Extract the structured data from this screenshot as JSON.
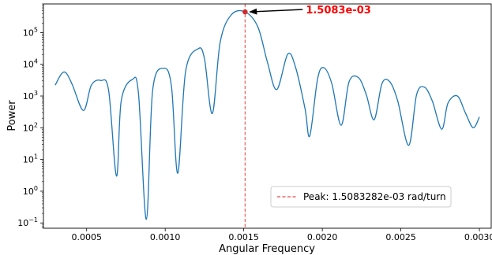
{
  "chart_data": {
    "type": "line",
    "title": "",
    "xlabel": "Angular Frequency",
    "ylabel": "Power",
    "yscale": "log",
    "xlim": [
      0.000225,
      0.003075
    ],
    "ylim": [
      0.068,
      800000
    ],
    "grid": false,
    "legend_position": "lower-right",
    "x_ticks": [
      {
        "value": 0.0005,
        "label": "0.0005"
      },
      {
        "value": 0.001,
        "label": "0.0010"
      },
      {
        "value": 0.0015,
        "label": "0.0015"
      },
      {
        "value": 0.002,
        "label": "0.0020"
      },
      {
        "value": 0.0025,
        "label": "0.0025"
      },
      {
        "value": 0.003,
        "label": "0.0030"
      }
    ],
    "y_ticks": [
      {
        "value": 0.1,
        "base": "10",
        "exp": "−1"
      },
      {
        "value": 1,
        "base": "10",
        "exp": "0"
      },
      {
        "value": 10,
        "base": "10",
        "exp": "1"
      },
      {
        "value": 100,
        "base": "10",
        "exp": "2"
      },
      {
        "value": 1000,
        "base": "10",
        "exp": "3"
      },
      {
        "value": 10000,
        "base": "10",
        "exp": "4"
      },
      {
        "value": 100000,
        "base": "10",
        "exp": "5"
      }
    ],
    "series": [
      {
        "color": "#1f77b4",
        "x": [
          0.0003,
          0.00034,
          0.00037,
          0.00041,
          0.00048,
          0.00053,
          0.00059,
          0.00064,
          0.00069,
          0.00072,
          0.00079,
          0.00083,
          0.00088,
          0.00092,
          0.00099,
          0.00104,
          0.00108,
          0.00113,
          0.00121,
          0.00125,
          0.0013,
          0.00135,
          0.00142,
          0.001508,
          0.00159,
          0.00165,
          0.00171,
          0.00178,
          0.00183,
          0.00189,
          0.00192,
          0.00197,
          0.00201,
          0.00206,
          0.00212,
          0.00217,
          0.00223,
          0.00228,
          0.00233,
          0.00238,
          0.00243,
          0.00248,
          0.00255,
          0.0026,
          0.00265,
          0.0027,
          0.00276,
          0.0028,
          0.00286,
          0.00291,
          0.00296,
          0.003
        ],
        "y": [
          2200,
          5000,
          5300,
          2200,
          350,
          2200,
          3100,
          1500,
          3,
          700,
          3300,
          1200,
          0.13,
          1500,
          7500,
          2000,
          3.7,
          6000,
          31000,
          15000,
          280,
          50000,
          360000,
          450000,
          150000,
          12000,
          1600,
          21000,
          8000,
          400,
          55,
          3500,
          7800,
          2500,
          120,
          2800,
          3800,
          1100,
          180,
          2500,
          2800,
          700,
          28,
          1100,
          1900,
          700,
          90,
          600,
          1000,
          300,
          100,
          220
        ]
      }
    ],
    "peak_line": {
      "x": 0.0015083282,
      "color": "#e84c4c"
    },
    "peak_point": {
      "x": 0.0015083282,
      "y": 450000,
      "color": "#d62728"
    },
    "annotation": {
      "text": "1.5083e-03",
      "color": "#ff0000"
    },
    "legend": {
      "label": "Peak: 1.5083282e-03 rad/turn"
    }
  }
}
